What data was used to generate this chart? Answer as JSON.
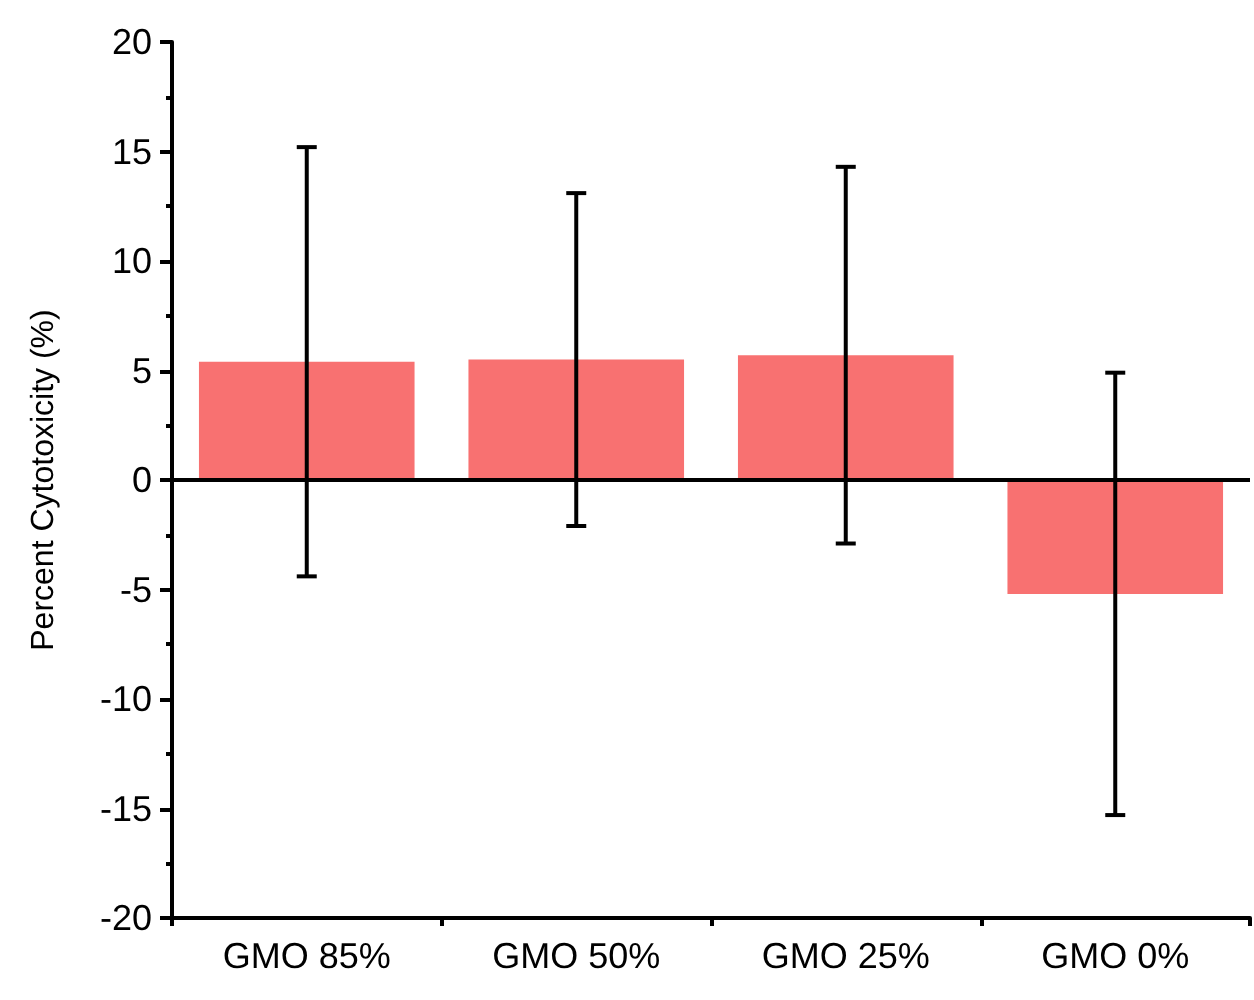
{
  "chart_data": {
    "type": "bar",
    "ylabel": "Percent Cytotoxicity (%)",
    "categories": [
      "GMO 85%",
      "GMO 50%",
      "GMO 25%",
      "GMO 0%"
    ],
    "values": [
      5.4,
      5.5,
      5.7,
      -5.2
    ],
    "errors": [
      9.8,
      7.6,
      8.6,
      10.1
    ],
    "color": "#f87171",
    "ylim": [
      -20,
      20
    ],
    "yticks": [
      -20,
      -15,
      -10,
      -5,
      0,
      5,
      10,
      15,
      20
    ],
    "ref_lines": [
      {
        "axis": "y",
        "value": 0,
        "color": "#000000"
      }
    ],
    "grid": false
  }
}
